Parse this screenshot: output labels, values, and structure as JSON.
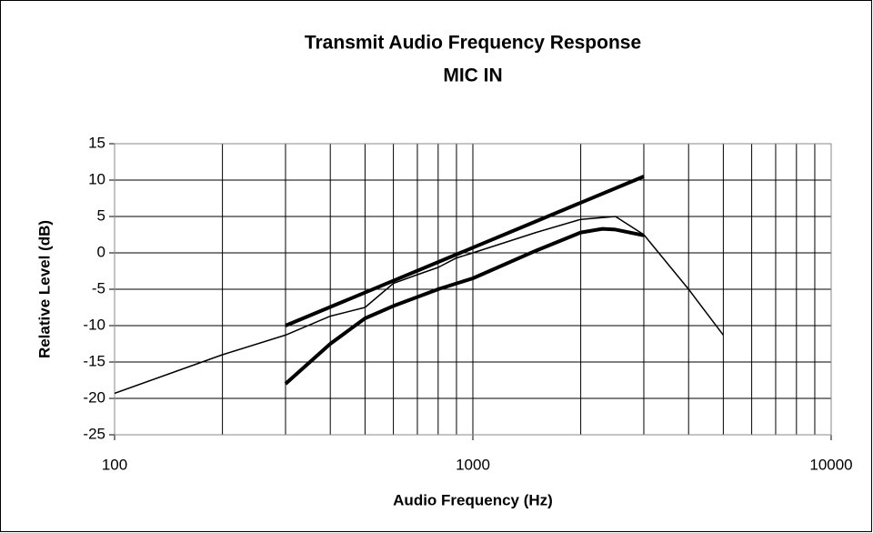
{
  "chart_data": {
    "type": "line",
    "title": "Transmit Audio Frequency Response",
    "subtitle": "MIC IN",
    "x_label": "Audio Frequency (Hz)",
    "y_label": "Relative Level (dB)",
    "log_x": true,
    "grid": true,
    "xlim": [
      100,
      10000
    ],
    "xticks": [
      100,
      1000,
      10000
    ],
    "x_minor_grid": [
      200,
      300,
      400,
      500,
      600,
      700,
      800,
      900,
      2000,
      3000,
      4000,
      5000,
      6000,
      7000,
      8000,
      9000
    ],
    "ylim": [
      -25,
      15
    ],
    "yticks": [
      -25,
      -20,
      -15,
      -10,
      -5,
      0,
      5,
      10,
      15
    ],
    "series": [
      {
        "color": "#000000",
        "width": 4,
        "x": [
          300,
          3000
        ],
        "values": [
          -10,
          10.5
        ]
      },
      {
        "color": "#000000",
        "width": 1.5,
        "x": [
          100,
          200,
          300,
          400,
          500,
          600,
          700,
          800,
          900,
          1000,
          1500,
          2000,
          2500,
          3000,
          4000,
          5000
        ],
        "values": [
          -19.3,
          -14,
          -11.3,
          -8.7,
          -7.5,
          -4.2,
          -3,
          -2,
          -0.7,
          0,
          2.8,
          4.6,
          5,
          2.5,
          -5,
          -11.3
        ]
      },
      {
        "color": "#000000",
        "width": 4,
        "x": [
          300,
          400,
          500,
          600,
          800,
          1000,
          1500,
          2000,
          2300,
          2500,
          3000
        ],
        "values": [
          -18,
          -12.5,
          -9,
          -7.3,
          -5,
          -3.5,
          0.3,
          2.8,
          3.3,
          3.2,
          2.4
        ]
      }
    ]
  }
}
